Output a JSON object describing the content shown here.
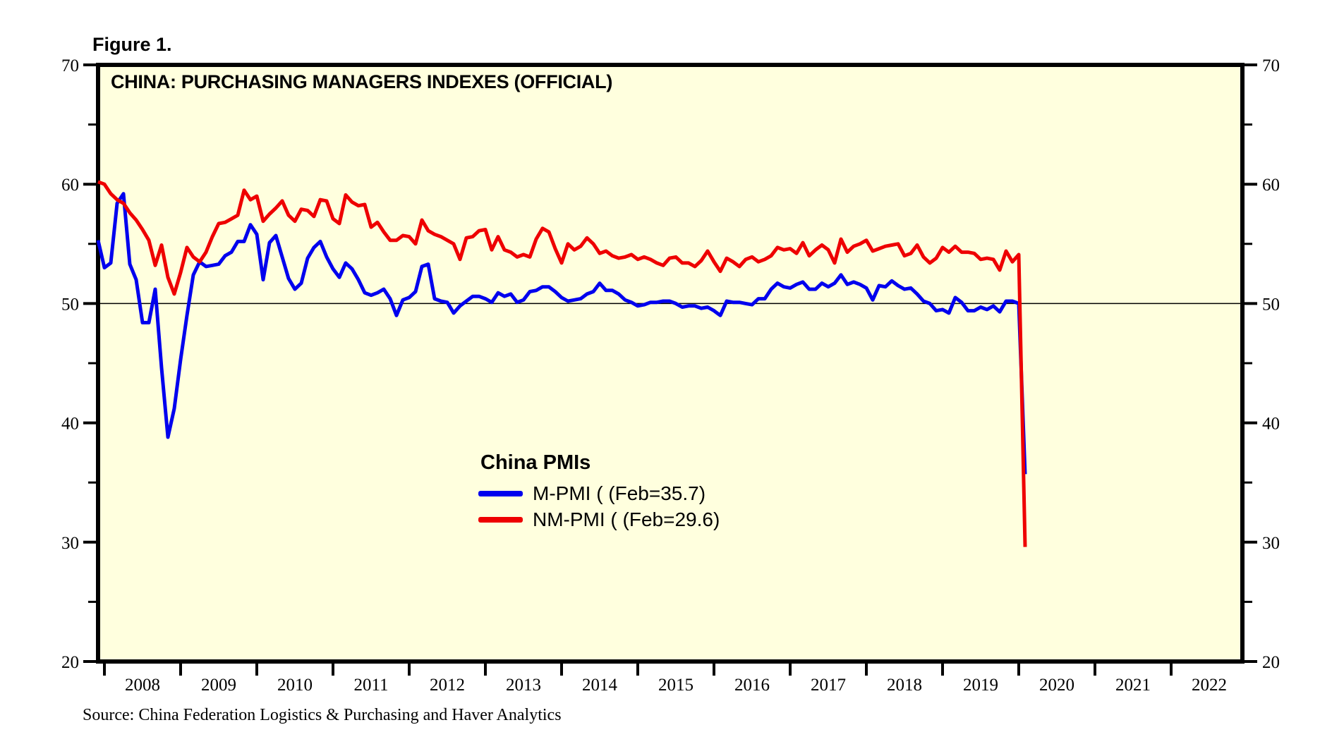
{
  "page": {
    "background": "#FFFFFF"
  },
  "figure": {
    "label": "Figure 1."
  },
  "chart": {
    "title": "CHINA: PURCHASING MANAGERS INDEXES (OFFICIAL)",
    "source": "Source: China Federation Logistics & Purchasing and Haver Analytics",
    "plot_background": "#FFFFDE",
    "border_color": "#000000",
    "legend": {
      "title": "China PMIs",
      "items": [
        {
          "label": "M-PMI ( (Feb=35.7)",
          "color": "#0000EE"
        },
        {
          "label": "NM-PMI ( (Feb=29.6)",
          "color": "#EE0000"
        }
      ]
    }
  },
  "chart_data": {
    "type": "line",
    "title": "CHINA: PURCHASING MANAGERS INDEXES (OFFICIAL)",
    "x_start": "2007-12",
    "x_end": "2020-02",
    "frequency": "monthly",
    "ylim": [
      20,
      70
    ],
    "y_ticks": [
      20,
      30,
      40,
      50,
      60,
      70
    ],
    "y_minor_ticks": [
      25,
      35,
      45,
      55,
      65
    ],
    "x_year_ticks": [
      2008,
      2009,
      2010,
      2011,
      2012,
      2013,
      2014,
      2015,
      2016,
      2017,
      2018,
      2019,
      2020,
      2021,
      2022
    ],
    "reference_line": 50,
    "grid": false,
    "legend_position": "center-bottom",
    "series": [
      {
        "name": "M-PMI",
        "label": "M-PMI ( (Feb=35.7)",
        "color": "#0000EE",
        "latest": {
          "month": "Feb",
          "value": 35.7
        },
        "values": [
          55.3,
          53.0,
          53.4,
          58.4,
          59.2,
          53.3,
          52.0,
          48.4,
          48.4,
          51.2,
          44.6,
          38.8,
          41.2,
          45.3,
          49.0,
          52.4,
          53.5,
          53.1,
          53.2,
          53.3,
          54.0,
          54.3,
          55.2,
          55.2,
          56.6,
          55.8,
          52.0,
          55.1,
          55.7,
          53.9,
          52.1,
          51.2,
          51.7,
          53.8,
          54.7,
          55.2,
          53.9,
          52.9,
          52.2,
          53.4,
          52.9,
          52.0,
          50.9,
          50.7,
          50.9,
          51.2,
          50.4,
          49.0,
          50.3,
          50.5,
          51.0,
          53.1,
          53.3,
          50.4,
          50.2,
          50.1,
          49.2,
          49.8,
          50.2,
          50.6,
          50.6,
          50.4,
          50.1,
          50.9,
          50.6,
          50.8,
          50.1,
          50.3,
          51.0,
          51.1,
          51.4,
          51.4,
          51.0,
          50.5,
          50.2,
          50.3,
          50.4,
          50.8,
          51.0,
          51.7,
          51.1,
          51.1,
          50.8,
          50.3,
          50.1,
          49.8,
          49.9,
          50.1,
          50.1,
          50.2,
          50.2,
          50.0,
          49.7,
          49.8,
          49.8,
          49.6,
          49.7,
          49.4,
          49.0,
          50.2,
          50.1,
          50.1,
          50.0,
          49.9,
          50.4,
          50.4,
          51.2,
          51.7,
          51.4,
          51.3,
          51.6,
          51.8,
          51.2,
          51.2,
          51.7,
          51.4,
          51.7,
          52.4,
          51.6,
          51.8,
          51.6,
          51.3,
          50.3,
          51.5,
          51.4,
          51.9,
          51.5,
          51.2,
          51.3,
          50.8,
          50.2,
          50.0,
          49.4,
          49.5,
          49.2,
          50.5,
          50.1,
          49.4,
          49.4,
          49.7,
          49.5,
          49.8,
          49.3,
          50.2,
          50.2,
          50.0,
          35.7
        ]
      },
      {
        "name": "NM-PMI",
        "label": "NM-PMI ( (Feb=29.6)",
        "color": "#EE0000",
        "latest": {
          "month": "Feb",
          "value": 29.6
        },
        "values": [
          60.2,
          60.0,
          59.2,
          58.7,
          58.4,
          57.6,
          57.0,
          56.2,
          55.3,
          53.2,
          54.9,
          52.2,
          50.8,
          52.6,
          54.7,
          53.9,
          53.5,
          54.3,
          55.6,
          56.7,
          56.8,
          57.1,
          57.4,
          59.5,
          58.7,
          59.0,
          56.9,
          57.5,
          58.0,
          58.6,
          57.4,
          56.9,
          57.9,
          57.8,
          57.3,
          58.7,
          58.6,
          57.1,
          56.7,
          59.1,
          58.5,
          58.2,
          58.3,
          56.4,
          56.8,
          56.0,
          55.3,
          55.3,
          55.7,
          55.6,
          55.0,
          57.0,
          56.1,
          55.8,
          55.6,
          55.3,
          55.0,
          53.7,
          55.5,
          55.6,
          56.1,
          56.2,
          54.5,
          55.6,
          54.5,
          54.3,
          53.9,
          54.1,
          53.9,
          55.4,
          56.3,
          56.0,
          54.6,
          53.4,
          55.0,
          54.5,
          54.8,
          55.5,
          55.0,
          54.2,
          54.4,
          54.0,
          53.8,
          53.9,
          54.1,
          53.7,
          53.9,
          53.7,
          53.4,
          53.2,
          53.8,
          53.9,
          53.4,
          53.4,
          53.1,
          53.6,
          54.4,
          53.5,
          52.7,
          53.8,
          53.5,
          53.1,
          53.7,
          53.9,
          53.5,
          53.7,
          54.0,
          54.7,
          54.5,
          54.6,
          54.2,
          55.1,
          54.0,
          54.5,
          54.9,
          54.5,
          53.4,
          55.4,
          54.3,
          54.8,
          55.0,
          55.3,
          54.4,
          54.6,
          54.8,
          54.9,
          55.0,
          54.0,
          54.2,
          54.9,
          53.9,
          53.4,
          53.8,
          54.7,
          54.3,
          54.8,
          54.3,
          54.3,
          54.2,
          53.7,
          53.8,
          53.7,
          52.8,
          54.4,
          53.5,
          54.1,
          29.6
        ]
      }
    ]
  }
}
